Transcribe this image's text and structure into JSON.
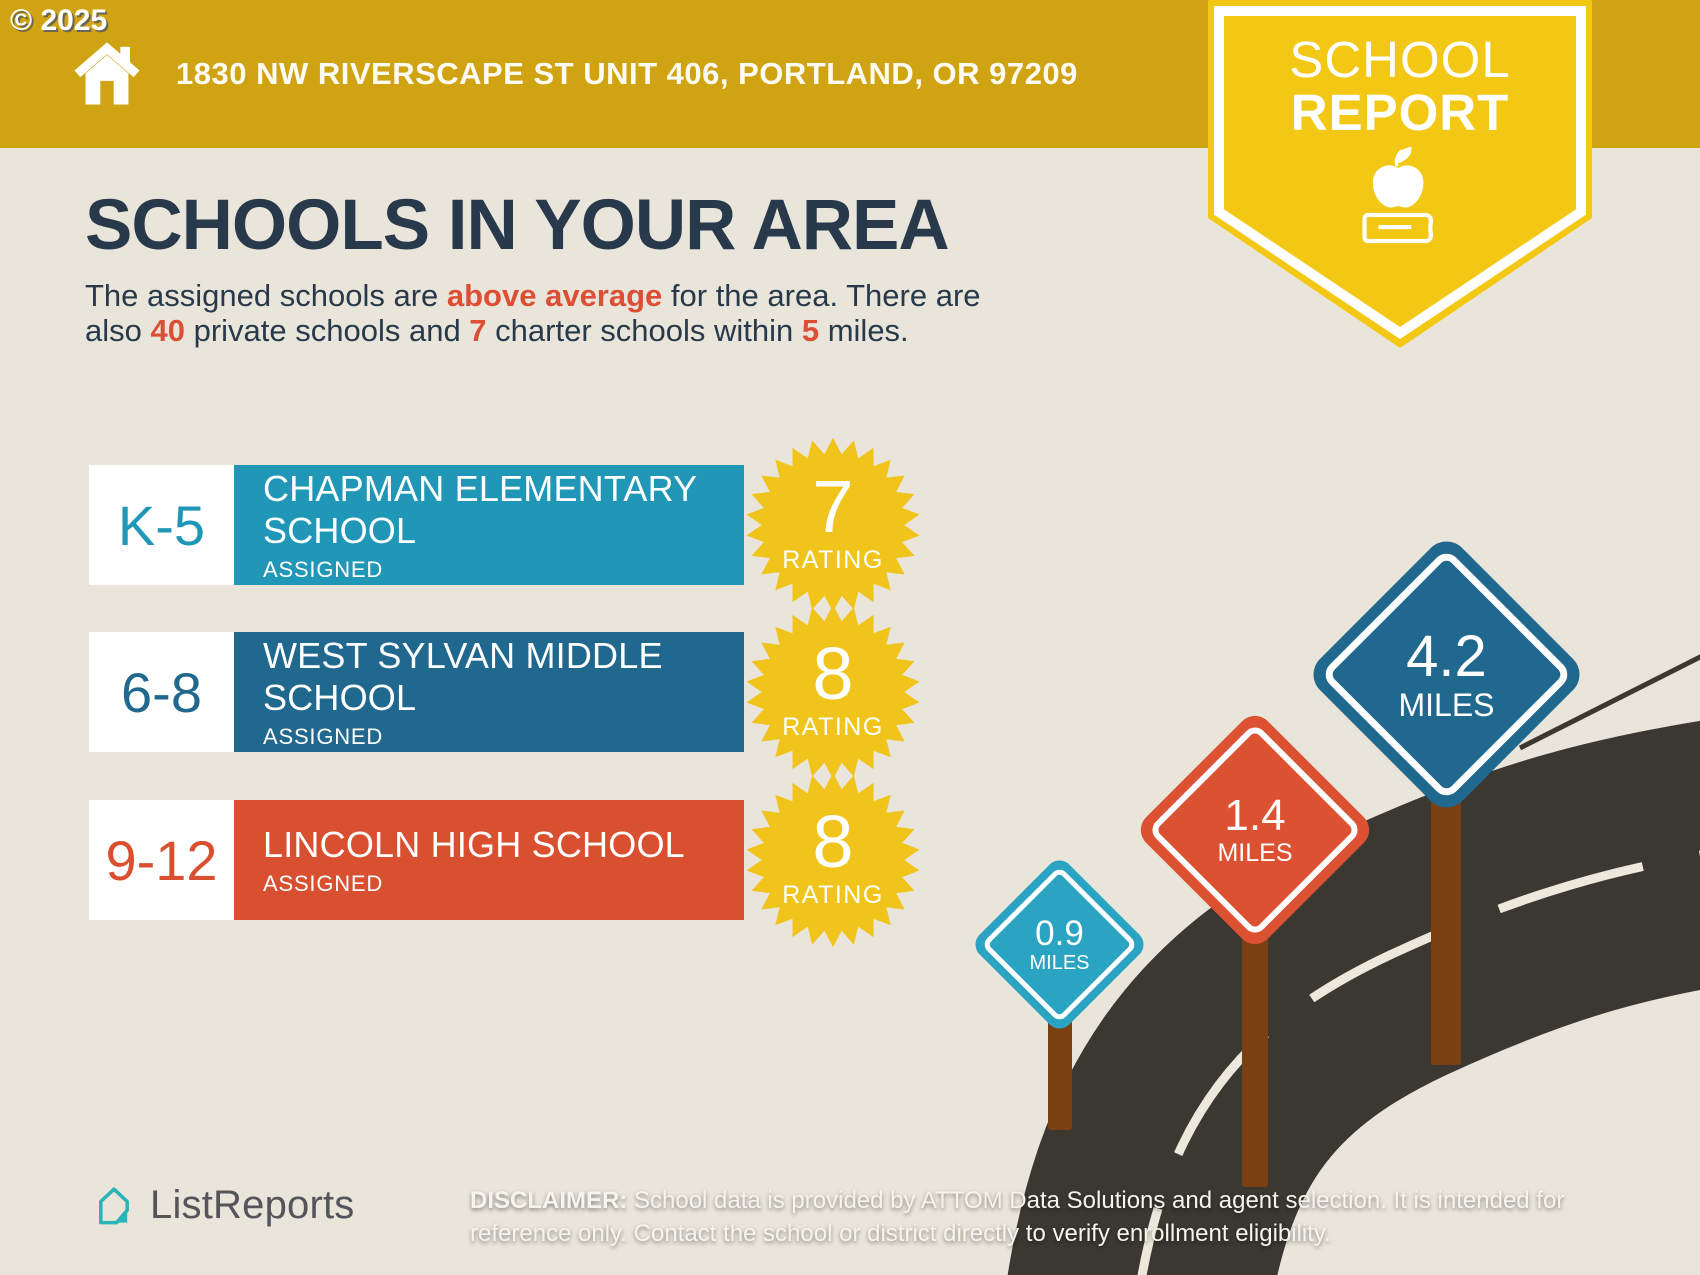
{
  "copyright": "© 2025",
  "header": {
    "address": "1830 NW RIVERSCAPE ST UNIT 406, PORTLAND, OR 97209",
    "badge": {
      "line1": "SCHOOL",
      "line2": "REPORT"
    }
  },
  "title": "SCHOOLS IN YOUR AREA",
  "intro": {
    "line1": {
      "pre": "The assigned schools are ",
      "bold": "above average",
      "post": " for the area. There are"
    },
    "line2": {
      "pre": "also ",
      "b1": "40",
      "m1": " private schools and ",
      "b2": "7",
      "m2": " charter schools within ",
      "b3": "5",
      "post": " miles."
    }
  },
  "schools": [
    {
      "grades": "K-5",
      "name": "CHAPMAN ELEMENTARY SCHOOL",
      "status": "ASSIGNED",
      "rating": "7",
      "rating_label": "RATING"
    },
    {
      "grades": "6-8",
      "name": "WEST SYLVAN MIDDLE SCHOOL",
      "status": "ASSIGNED",
      "rating": "8",
      "rating_label": "RATING"
    },
    {
      "grades": "9-12",
      "name": "LINCOLN HIGH SCHOOL",
      "status": "ASSIGNED",
      "rating": "8",
      "rating_label": "RATING"
    }
  ],
  "signs": [
    {
      "distance": "4.2",
      "unit": "MILES"
    },
    {
      "distance": "1.4",
      "unit": "MILES"
    },
    {
      "distance": "0.9",
      "unit": "MILES"
    }
  ],
  "footer": {
    "brand": "ListReports",
    "disclaimer_label": "DISCLAIMER:",
    "disclaimer_text": " School data is provided by ATTOM Data Solutions and agent selection. It is intended for reference only. Contact the school or district directly to verify enrollment eligibility."
  },
  "colors": {
    "banner_gold": "#D0A312",
    "badge_yellow": "#F3C815",
    "background_beige": "#E9E5DA",
    "headline_navy": "#27394A",
    "accent_red": "#DC4F35",
    "elementary_teal": "#2197B8",
    "middle_blue": "#20688E",
    "high_red": "#D8502F",
    "rating_star_yellow": "#F0C41B",
    "road_dark": "#3B3832",
    "road_line": "#EDE8DC",
    "post_brown": "#7B4011",
    "logo_teal": "#2AB3B8",
    "logo_gray": "#54555A"
  }
}
